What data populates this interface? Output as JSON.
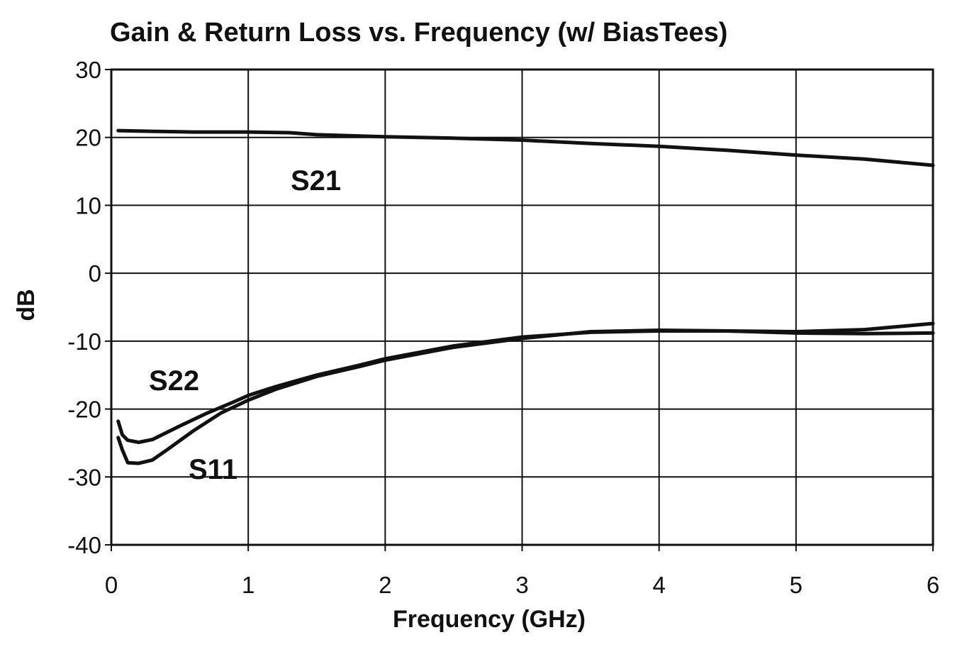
{
  "chart_data": {
    "type": "line",
    "title": "Gain & Return Loss vs. Frequency (w/ BiasTees)",
    "xlabel": "Frequency (GHz)",
    "ylabel": "dB",
    "xlim": [
      0,
      6
    ],
    "ylim": [
      -40,
      30
    ],
    "xticks": [
      0,
      1,
      2,
      3,
      4,
      5,
      6
    ],
    "yticks": [
      30,
      20,
      10,
      0,
      -10,
      -20,
      -30,
      -40
    ],
    "grid": true,
    "legend": "none",
    "series": [
      {
        "name": "S21",
        "x": [
          0.05,
          0.3,
          0.6,
          1.0,
          1.3,
          1.5,
          2.0,
          2.5,
          3.0,
          3.5,
          4.0,
          4.5,
          5.0,
          5.5,
          6.0
        ],
        "y": [
          21.0,
          20.9,
          20.8,
          20.8,
          20.7,
          20.4,
          20.1,
          19.9,
          19.6,
          19.1,
          18.7,
          18.1,
          17.4,
          16.8,
          15.9
        ]
      },
      {
        "name": "S22",
        "x": [
          0.05,
          0.08,
          0.12,
          0.2,
          0.3,
          0.5,
          0.7,
          0.9,
          1.0,
          1.2,
          1.5,
          1.8,
          2.0,
          2.5,
          3.0,
          3.5,
          4.0,
          4.5,
          5.0,
          5.5,
          6.0
        ],
        "y": [
          -21.8,
          -23.8,
          -24.6,
          -24.9,
          -24.5,
          -22.5,
          -20.6,
          -18.9,
          -18.0,
          -16.7,
          -15.0,
          -13.6,
          -12.6,
          -10.7,
          -9.4,
          -8.7,
          -8.5,
          -8.5,
          -8.6,
          -8.3,
          -7.4
        ]
      },
      {
        "name": "S11",
        "x": [
          0.05,
          0.08,
          0.12,
          0.2,
          0.3,
          0.4,
          0.6,
          0.8,
          1.0,
          1.2,
          1.5,
          1.8,
          2.0,
          2.5,
          3.0,
          3.5,
          4.0,
          4.5,
          5.0,
          5.5,
          6.0
        ],
        "y": [
          -24.2,
          -26.0,
          -27.9,
          -28.0,
          -27.5,
          -26.1,
          -23.2,
          -20.6,
          -18.7,
          -17.1,
          -15.2,
          -13.8,
          -12.8,
          -10.9,
          -9.6,
          -8.6,
          -8.4,
          -8.5,
          -8.8,
          -8.9,
          -8.8
        ]
      }
    ]
  }
}
